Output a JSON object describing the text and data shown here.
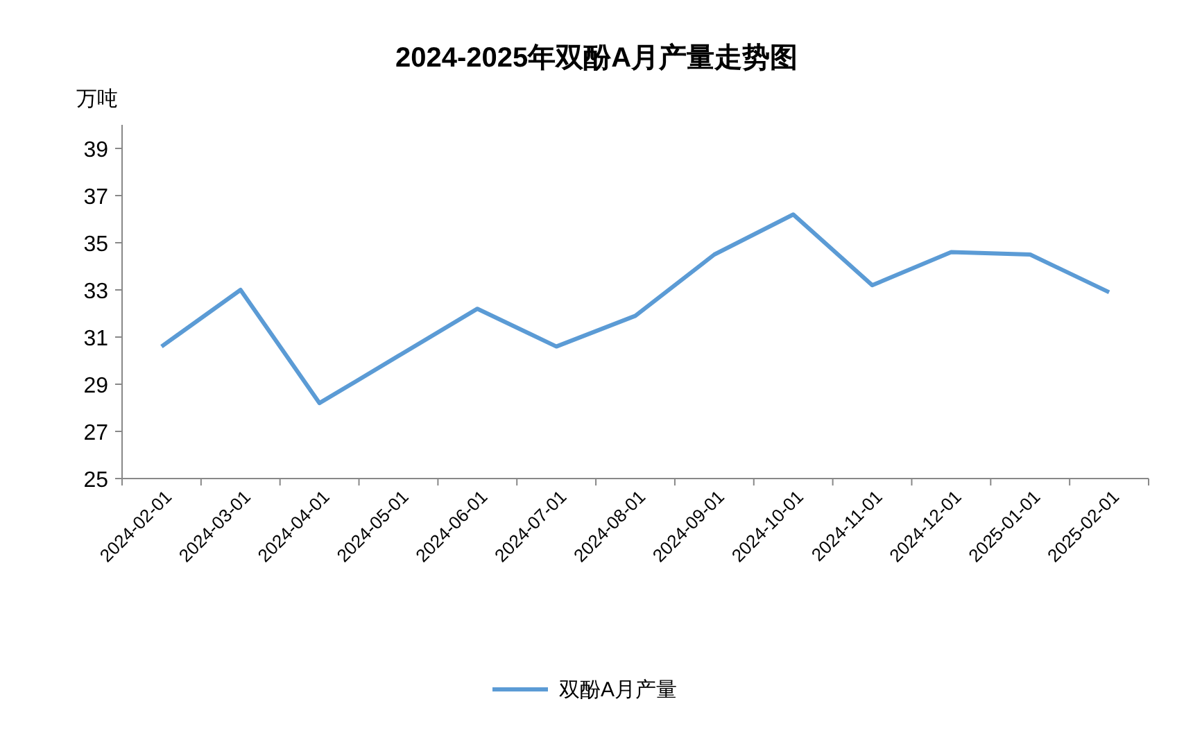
{
  "chart_data": {
    "type": "line",
    "title": "2024-2025年双酚A月产量走势图",
    "ylabel": "万吨",
    "categories": [
      "2024-02-01",
      "2024-03-01",
      "2024-04-01",
      "2024-05-01",
      "2024-06-01",
      "2024-07-01",
      "2024-08-01",
      "2024-09-01",
      "2024-10-01",
      "2024-11-01",
      "2024-12-01",
      "2025-01-01",
      "2025-02-01"
    ],
    "series": [
      {
        "name": "双酚A月产量",
        "color": "#5b9bd5",
        "values": [
          30.6,
          33.0,
          28.2,
          30.2,
          32.2,
          30.6,
          31.9,
          34.5,
          36.2,
          33.2,
          34.6,
          34.5,
          32.9
        ]
      }
    ],
    "ylim": [
      25,
      40
    ],
    "yticks": [
      25,
      27,
      29,
      31,
      33,
      35,
      37,
      39
    ],
    "grid": false,
    "legend": "bottom",
    "marker": "none"
  }
}
